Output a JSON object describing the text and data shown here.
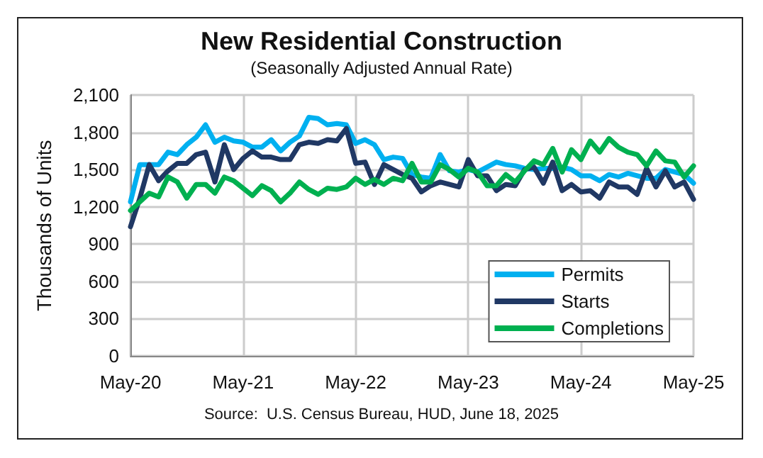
{
  "chart_data": {
    "type": "line",
    "title": "New Residential Construction",
    "subtitle": "(Seasonally Adjusted Annual Rate)",
    "ylabel": "Thousands of Units",
    "annotations": [
      "Source:  U.S. Census Bureau, HUD, June 18, 2025"
    ],
    "categories": [
      "May-20",
      null,
      null,
      null,
      null,
      null,
      null,
      null,
      null,
      null,
      null,
      null,
      "May-21",
      null,
      null,
      null,
      null,
      null,
      null,
      null,
      null,
      null,
      null,
      null,
      "May-22",
      null,
      null,
      null,
      null,
      null,
      null,
      null,
      null,
      null,
      null,
      null,
      "May-23",
      null,
      null,
      null,
      null,
      null,
      null,
      null,
      null,
      null,
      null,
      null,
      "May-24",
      null,
      null,
      null,
      null,
      null,
      null,
      null,
      null,
      null,
      null,
      null,
      "May-25"
    ],
    "series": [
      {
        "name": "Permits",
        "color": "#00b0f0",
        "values": [
          1240,
          1540,
          1540,
          1540,
          1640,
          1620,
          1700,
          1760,
          1860,
          1720,
          1760,
          1730,
          1720,
          1680,
          1680,
          1740,
          1650,
          1720,
          1770,
          1920,
          1910,
          1860,
          1870,
          1860,
          1710,
          1740,
          1700,
          1580,
          1600,
          1590,
          1460,
          1440,
          1430,
          1620,
          1490,
          1480,
          1500,
          1480,
          1520,
          1560,
          1540,
          1530,
          1510,
          1500,
          1510,
          1510,
          1520,
          1500,
          1450,
          1450,
          1410,
          1460,
          1440,
          1470,
          1450,
          1430,
          1430,
          1500,
          1480,
          1460,
          1390
        ]
      },
      {
        "name": "Starts",
        "color": "#203864",
        "values": [
          1040,
          1270,
          1540,
          1410,
          1490,
          1550,
          1550,
          1620,
          1640,
          1400,
          1700,
          1500,
          1590,
          1650,
          1600,
          1600,
          1580,
          1580,
          1700,
          1720,
          1710,
          1740,
          1730,
          1830,
          1550,
          1560,
          1380,
          1540,
          1500,
          1460,
          1430,
          1320,
          1370,
          1400,
          1380,
          1360,
          1580,
          1450,
          1450,
          1330,
          1380,
          1370,
          1500,
          1520,
          1390,
          1560,
          1330,
          1380,
          1320,
          1330,
          1270,
          1400,
          1360,
          1360,
          1300,
          1510,
          1360,
          1490,
          1360,
          1400,
          1260
        ]
      },
      {
        "name": "Completions",
        "color": "#00b050",
        "values": [
          1170,
          1240,
          1310,
          1280,
          1440,
          1400,
          1270,
          1380,
          1380,
          1310,
          1440,
          1410,
          1350,
          1290,
          1370,
          1330,
          1240,
          1310,
          1400,
          1340,
          1300,
          1350,
          1340,
          1360,
          1430,
          1380,
          1420,
          1380,
          1430,
          1410,
          1550,
          1400,
          1400,
          1540,
          1500,
          1440,
          1510,
          1480,
          1370,
          1370,
          1460,
          1400,
          1490,
          1570,
          1540,
          1670,
          1480,
          1660,
          1580,
          1730,
          1640,
          1750,
          1680,
          1640,
          1620,
          1530,
          1650,
          1570,
          1560,
          1440,
          1530
        ]
      }
    ],
    "ylim": [
      0,
      2100
    ],
    "yticks": [
      0,
      300,
      600,
      900,
      {
        "value": 1200,
        "label": "1,200"
      },
      {
        "value": 1500,
        "label": "1,500"
      },
      {
        "value": 1800,
        "label": "1,800"
      },
      {
        "value": 2100,
        "label": "2,100"
      }
    ],
    "grid": true,
    "legend": "bottom right",
    "marker": "none",
    "line_style": "solid"
  }
}
